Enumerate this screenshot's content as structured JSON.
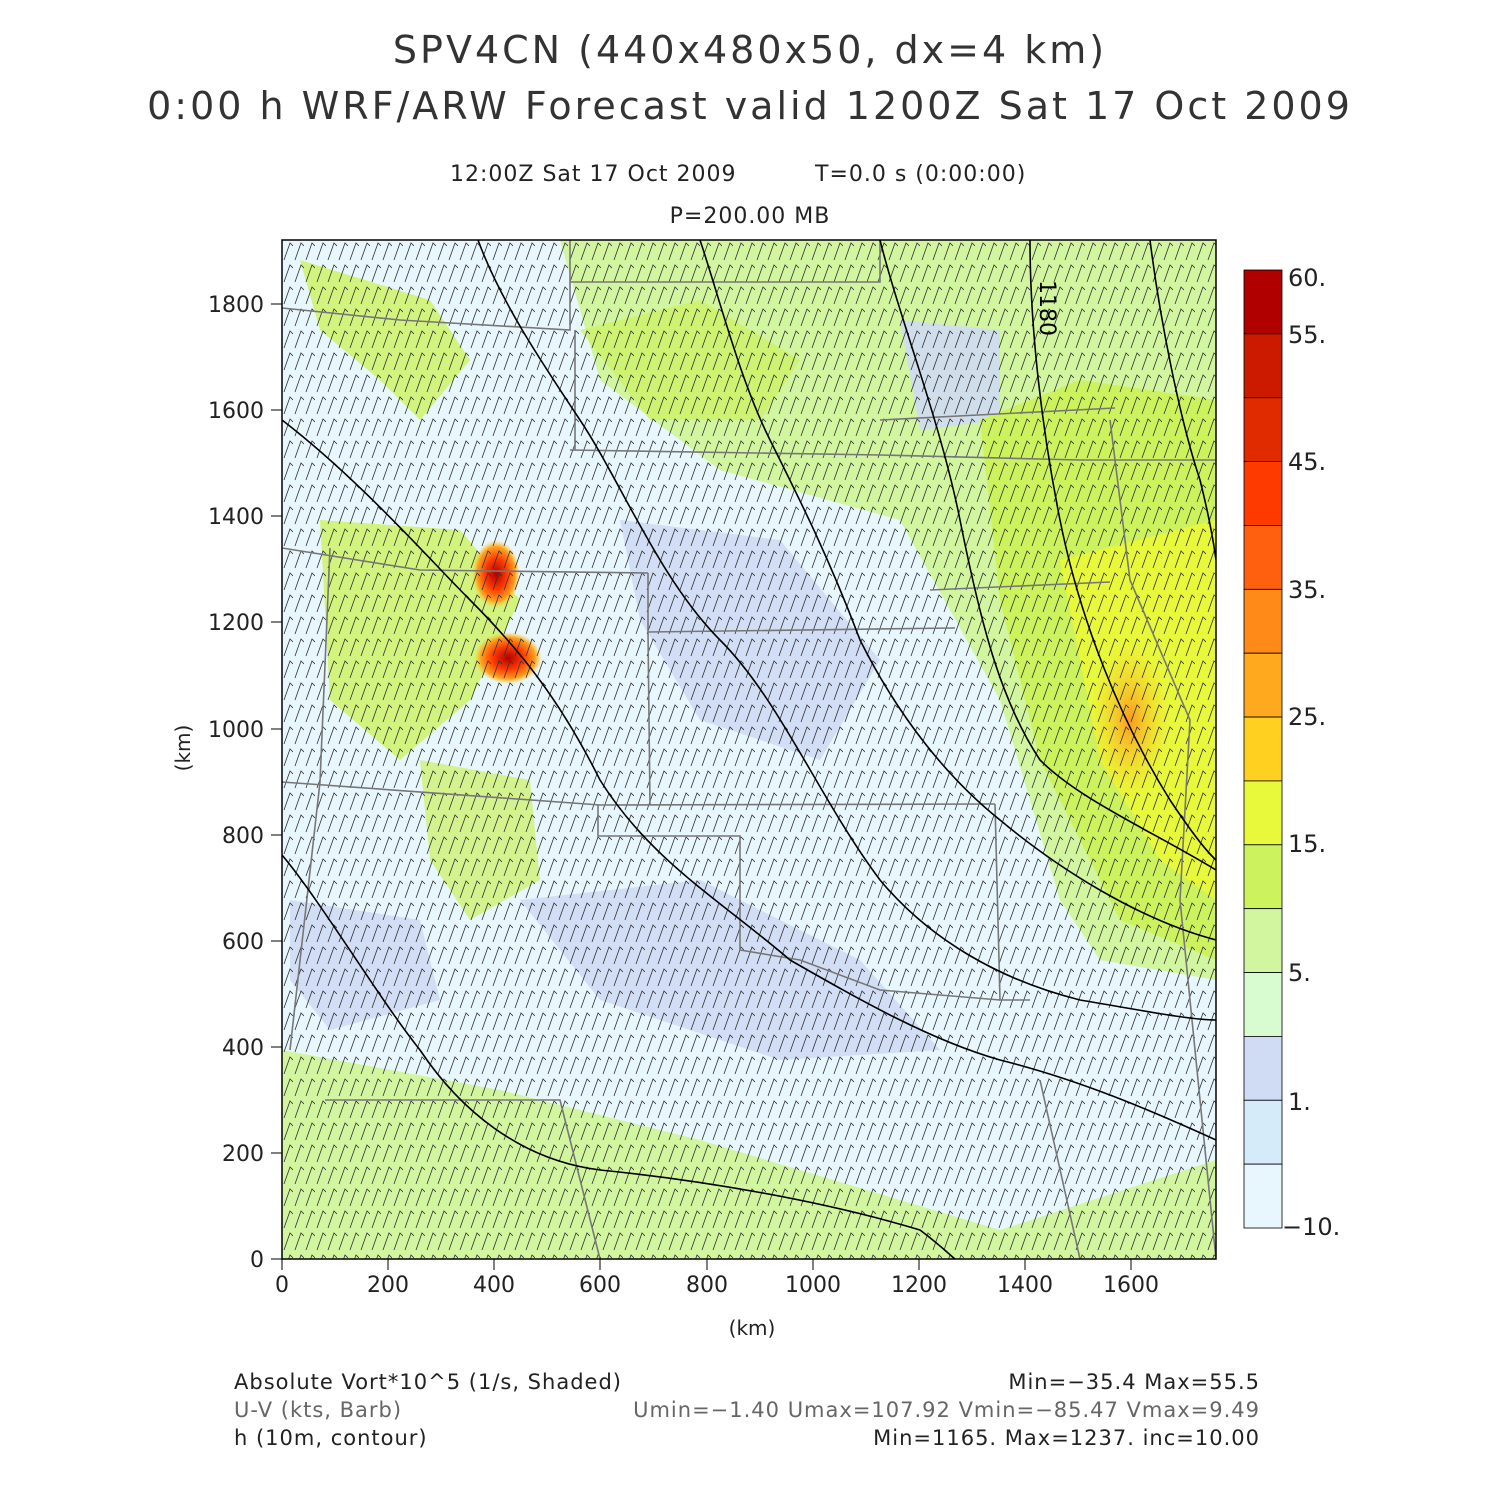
{
  "header": {
    "title_line1": "SPV4CN (440x480x50, dx=4 km)",
    "title_line2": "0:00 h WRF/ARW Forecast valid 1200Z Sat 17 Oct 2009",
    "valid_time": "12:00Z Sat 17 Oct 2009",
    "model_time": "T=0.0 s (0:00:00)",
    "level": "P=200.00 MB"
  },
  "axes": {
    "x_label": "(km)",
    "y_label": "(km)",
    "x_ticks": [
      "0",
      "200",
      "400",
      "600",
      "800",
      "1000",
      "1200",
      "1400",
      "1600"
    ],
    "y_ticks": [
      "0",
      "200",
      "400",
      "600",
      "800",
      "1000",
      "1200",
      "1400",
      "1600",
      "1800"
    ],
    "contour_label": "1180"
  },
  "colorbar": {
    "labels": [
      "60.",
      "55.",
      "45.",
      "35.",
      "25.",
      "15.",
      "5.",
      "1.",
      "−10."
    ],
    "colors": [
      "#b00000",
      "#cc1a00",
      "#e02a00",
      "#ff3a00",
      "#ff6010",
      "#ff8a18",
      "#ffaa1e",
      "#ffd020",
      "#e8f83a",
      "#ccf25e",
      "#d2f5a0",
      "#d8fbd0",
      "#cfdcf4",
      "#d6ebfa",
      "#e8f6fd"
    ]
  },
  "legend": {
    "field1": "Absolute Vort*10^5 (1/s, Shaded)",
    "field1_stats": "Min=−35.4 Max=55.5",
    "field2": "U-V (kts, Barb)",
    "field2_stats": "Umin=−1.40 Umax=107.92 Vmin=−85.47 Vmax=9.49",
    "field3": "h (10m, contour)",
    "field3_stats": "Min=1165. Max=1237. inc=10.00"
  }
}
